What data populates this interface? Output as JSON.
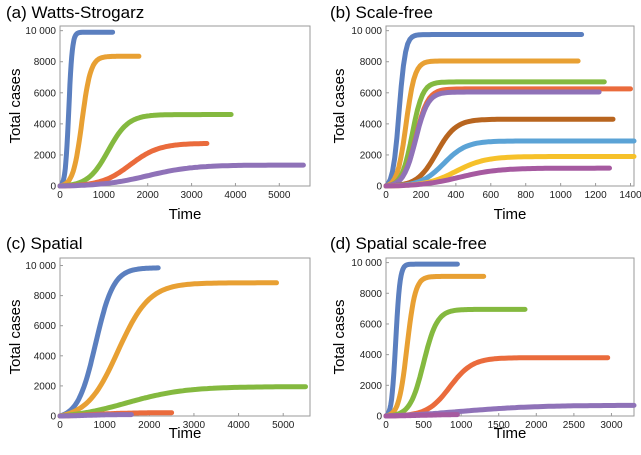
{
  "chart_data": [
    {
      "type": "line",
      "title": "(a) Watts-Strogarz",
      "xlabel": "Time",
      "ylabel": "Total cases",
      "xlim": [
        0,
        5700
      ],
      "ylim": [
        0,
        10300
      ],
      "xticks": [
        0,
        1000,
        2000,
        3000,
        4000,
        5000
      ],
      "yticks": [
        0,
        2000,
        4000,
        6000,
        8000,
        10000
      ],
      "ytick_labels": [
        "0",
        "2000",
        "4000",
        "6000",
        "8000",
        "10 000"
      ],
      "series": [
        {
          "color": "#5b7fbf",
          "mid": 200,
          "scale": 40,
          "max": 9900,
          "end": 1200
        },
        {
          "color": "#e8a033",
          "mid": 500,
          "scale": 100,
          "max": 8350,
          "end": 1800
        },
        {
          "color": "#84b93f",
          "mid": 1100,
          "scale": 230,
          "max": 4600,
          "end": 3900
        },
        {
          "color": "#ea6b3c",
          "mid": 1600,
          "scale": 330,
          "max": 2750,
          "end": 3350
        },
        {
          "color": "#8f72b8",
          "mid": 2000,
          "scale": 520,
          "max": 1350,
          "end": 5550
        }
      ]
    },
    {
      "type": "line",
      "title": "(b) Scale-free",
      "xlabel": "Time",
      "ylabel": "Total cases",
      "xlim": [
        0,
        1420
      ],
      "ylim": [
        0,
        10300
      ],
      "xticks": [
        0,
        200,
        400,
        600,
        800,
        1000,
        1200,
        1400
      ],
      "yticks": [
        0,
        2000,
        4000,
        6000,
        8000,
        10000
      ],
      "ytick_labels": [
        "0",
        "2000",
        "4000",
        "6000",
        "8000",
        "10 000"
      ],
      "series": [
        {
          "color": "#5b7fbf",
          "mid": 75,
          "scale": 18,
          "max": 9750,
          "end": 1120
        },
        {
          "color": "#e8a033",
          "mid": 115,
          "scale": 25,
          "max": 8050,
          "end": 1100
        },
        {
          "color": "#84b93f",
          "mid": 150,
          "scale": 30,
          "max": 6700,
          "end": 1250
        },
        {
          "color": "#ea6b3c",
          "mid": 170,
          "scale": 35,
          "max": 6250,
          "end": 1400
        },
        {
          "color": "#8f72b8",
          "mid": 170,
          "scale": 35,
          "max": 6050,
          "end": 1220
        },
        {
          "color": "#b8651f",
          "mid": 290,
          "scale": 55,
          "max": 4300,
          "end": 1300
        },
        {
          "color": "#5ba3d6",
          "mid": 330,
          "scale": 65,
          "max": 2900,
          "end": 1420
        },
        {
          "color": "#f6c12a",
          "mid": 400,
          "scale": 85,
          "max": 1900,
          "end": 1420
        },
        {
          "color": "#a65aa0",
          "mid": 420,
          "scale": 110,
          "max": 1150,
          "end": 1280
        }
      ]
    },
    {
      "type": "line",
      "title": "(c) Spatial",
      "xlabel": "Time",
      "ylabel": "Total cases",
      "xlim": [
        0,
        5600
      ],
      "ylim": [
        0,
        10500
      ],
      "xticks": [
        0,
        1000,
        2000,
        3000,
        4000,
        5000
      ],
      "yticks": [
        0,
        2000,
        4000,
        6000,
        8000,
        10000
      ],
      "ytick_labels": [
        "0",
        "2000",
        "4000",
        "6000",
        "8000",
        "10 000"
      ],
      "series": [
        {
          "color": "#5b7fbf",
          "mid": 800,
          "scale": 200,
          "max": 9850,
          "end": 2200
        },
        {
          "color": "#e8a033",
          "mid": 1300,
          "scale": 350,
          "max": 8850,
          "end": 4850
        },
        {
          "color": "#84b93f",
          "mid": 1500,
          "scale": 650,
          "max": 1950,
          "end": 5500
        },
        {
          "color": "#ea6b3c",
          "mid": 700,
          "scale": 400,
          "max": 220,
          "end": 2500
        },
        {
          "color": "#8f72b8",
          "mid": 600,
          "scale": 300,
          "max": 100,
          "end": 1600
        }
      ]
    },
    {
      "type": "line",
      "title": "(d) Spatial scale-free",
      "xlabel": "Time",
      "ylabel": "Total cases",
      "xlim": [
        0,
        3300
      ],
      "ylim": [
        0,
        10300
      ],
      "xticks": [
        0,
        500,
        1000,
        1500,
        2000,
        2500,
        3000
      ],
      "yticks": [
        0,
        2000,
        4000,
        6000,
        8000,
        10000
      ],
      "ytick_labels": [
        "0",
        "2000",
        "4000",
        "6000",
        "8000",
        "10 000"
      ],
      "series": [
        {
          "color": "#5b7fbf",
          "mid": 130,
          "scale": 28,
          "max": 9900,
          "end": 950
        },
        {
          "color": "#e8a033",
          "mid": 280,
          "scale": 55,
          "max": 9100,
          "end": 1300
        },
        {
          "color": "#84b93f",
          "mid": 500,
          "scale": 90,
          "max": 6950,
          "end": 1850
        },
        {
          "color": "#ea6b3c",
          "mid": 850,
          "scale": 150,
          "max": 3800,
          "end": 2950
        },
        {
          "color": "#8f72b8",
          "mid": 1000,
          "scale": 500,
          "max": 700,
          "end": 3300
        },
        {
          "color": "#a65aa0",
          "mid": 500,
          "scale": 300,
          "max": 120,
          "end": 950
        }
      ]
    }
  ]
}
